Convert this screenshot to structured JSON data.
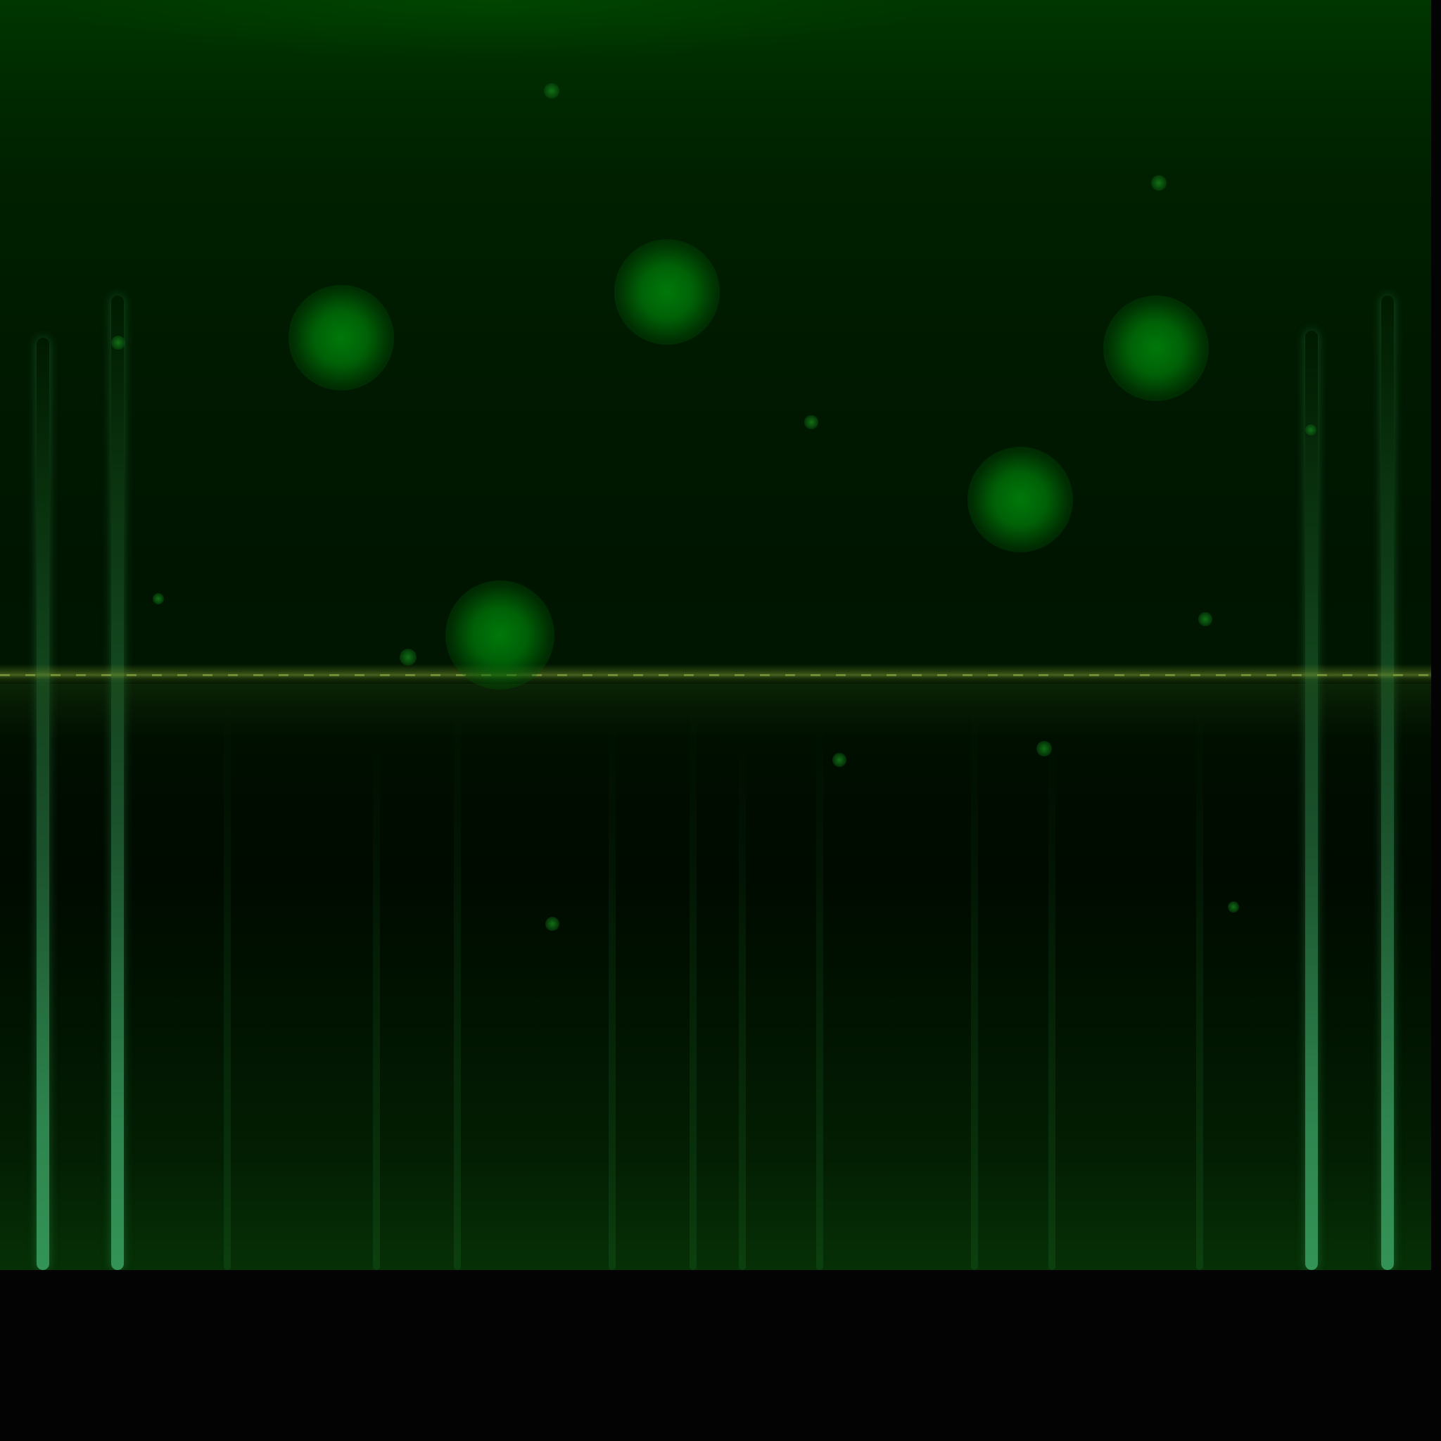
{
  "scene": {
    "description_free": true,
    "palette": {
      "background_top": "#003600",
      "background_mid": "#001500",
      "background_bottom": "#063006",
      "orb_color": "#007d0a",
      "beam_color": "#46be78",
      "horizon_color": "#8caa3c",
      "letterbox": "#030303"
    }
  }
}
